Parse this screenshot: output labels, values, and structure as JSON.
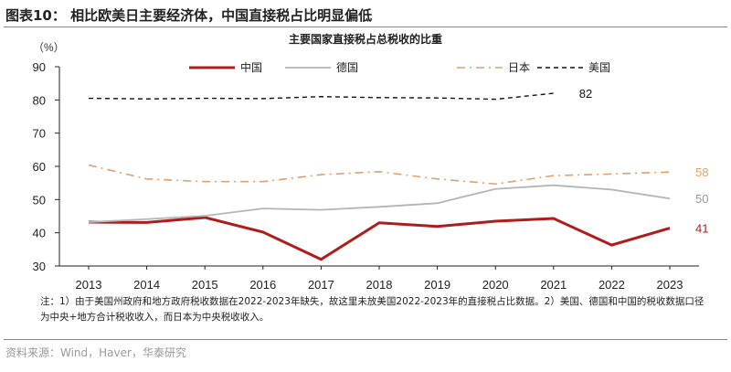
{
  "figure_title": "图表10：  相比欧美日主要经济体，中国直接税占比明显偏低",
  "note": "注：1）由于美国州政府和地方政府税收数据在2022-2023年缺失，故这里未放美国2022-2023年的直接税占比数据。2）美国、德国和中国的税收数据口径为中央+地方合计税收收入，而日本为中央税收收入。",
  "source": "资料来源：Wind，Haver，华泰研究",
  "chart_data": {
    "type": "line",
    "title": "主要国家直接税占总税收的比重",
    "ylabel": "（%）",
    "xlabel": "",
    "ylim": [
      30,
      90
    ],
    "yticks": [
      30,
      40,
      50,
      60,
      70,
      80,
      90
    ],
    "grid": false,
    "legend_position": "top",
    "x": [
      "2013",
      "2014",
      "2015",
      "2016",
      "2017",
      "2018",
      "2019",
      "2020",
      "2021",
      "2022",
      "2023"
    ],
    "series": [
      {
        "name": "中国",
        "color": "#b01c1c",
        "style": "solid",
        "end_label": "41",
        "values": [
          43.2,
          43.1,
          44.6,
          40.2,
          32.0,
          43.0,
          41.9,
          43.5,
          44.3,
          36.3,
          41.4
        ]
      },
      {
        "name": "德国",
        "color": "#b5b5b5",
        "style": "solid",
        "end_label": "50",
        "values": [
          43.2,
          44.1,
          45.1,
          47.3,
          46.9,
          47.8,
          48.9,
          53.2,
          54.3,
          53.0,
          50.3
        ]
      },
      {
        "name": "日本",
        "color": "#e3a068",
        "style": "dashdot",
        "end_label": "58",
        "values": [
          60.4,
          56.2,
          55.4,
          55.4,
          57.5,
          58.4,
          56.2,
          54.7,
          57.2,
          57.7,
          58.3
        ]
      },
      {
        "name": "美国",
        "color": "#111111",
        "style": "dashed",
        "end_label": "82",
        "values": [
          80.5,
          80.3,
          80.5,
          80.4,
          81.0,
          80.7,
          80.6,
          80.2,
          82.0,
          null,
          null
        ]
      }
    ]
  }
}
